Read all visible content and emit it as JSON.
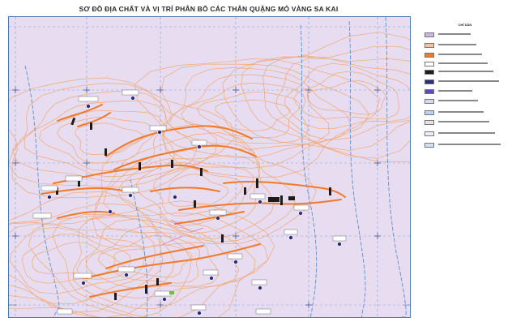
{
  "title": "SƠ ĐỒ ĐỊA CHẤT VÀ VỊ TRÍ PHÂN BỐ CÁC THÂN QUẶNG MỎ VÀNG SA KAI",
  "legend_title": "CHỈ DẪN",
  "colors": {
    "map_bg": "#e7dcf0",
    "contour": "#f0a36a",
    "ore_body": "#f07a2a",
    "grid": "#7aa0d6",
    "stream": "#5f8fd0",
    "frame": "#4a78b8"
  },
  "legend_items": [
    {
      "swatch": "#c9b8e6",
      "icon": "pattern-swatch"
    },
    {
      "swatch": "#f3c49b",
      "icon": "contour-line-icon"
    },
    {
      "swatch": "#f07a2a",
      "icon": "ore-body-icon"
    },
    {
      "swatch": "#ffffff",
      "icon": "boundary-icon"
    },
    {
      "swatch": "#1b1b1b",
      "icon": "trench-icon"
    },
    {
      "swatch": "#2c2c7a",
      "icon": "drill-hole-icon"
    },
    {
      "swatch": "#5a4ac0",
      "icon": "sample-point-icon"
    },
    {
      "swatch": "#d8d8f0",
      "icon": "dotted-line-icon"
    },
    {
      "swatch": "#b9d3ee",
      "icon": "stream-icon"
    },
    {
      "swatch": "#e3e3e3",
      "icon": "road-icon"
    },
    {
      "swatch": "#e8eef8",
      "icon": "grid-icon"
    },
    {
      "swatch": "#cfe2f5",
      "icon": "river-icon"
    }
  ]
}
